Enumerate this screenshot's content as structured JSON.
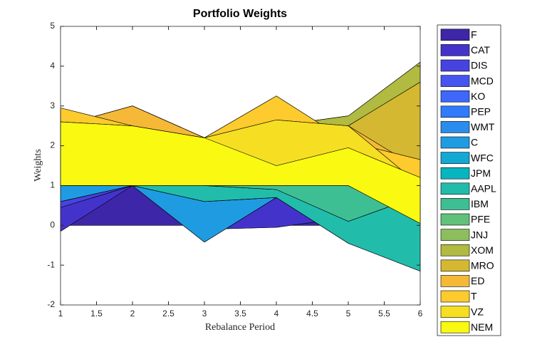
{
  "chart_data": {
    "type": "area",
    "title": "Portfolio Weights",
    "x_label": "Rebalance Period",
    "y_label": "Weights",
    "x": [
      1,
      2,
      3,
      4,
      5,
      6
    ],
    "xlim": [
      1,
      6
    ],
    "xticks": [
      1,
      1.5,
      2,
      2.5,
      3,
      3.5,
      4,
      4.5,
      5,
      5.5,
      6
    ],
    "ylim": [
      -2,
      5
    ],
    "yticks": [
      -2,
      -1,
      0,
      1,
      2,
      3,
      4,
      5
    ],
    "legend": "outside-right",
    "series": [
      {
        "name": "F",
        "color": "#3e26a8",
        "values": [
          -0.15,
          1.0,
          -0.1,
          -0.05,
          0.2,
          0.3
        ]
      },
      {
        "name": "CAT",
        "color": "#4433cb",
        "values": [
          0.6,
          0,
          0,
          0.75,
          0.1,
          0
        ]
      },
      {
        "name": "DIS",
        "color": "#4743e1",
        "values": [
          0.15,
          0,
          0,
          0,
          0,
          0
        ]
      },
      {
        "name": "MCD",
        "color": "#4655f0",
        "values": [
          0,
          0,
          0,
          0,
          0,
          0
        ]
      },
      {
        "name": "KO",
        "color": "#3e67fb",
        "values": [
          0,
          0,
          0,
          0,
          0,
          0
        ]
      },
      {
        "name": "PEP",
        "color": "#2f7bfa",
        "values": [
          0,
          0,
          -0.32,
          0,
          0,
          0
        ]
      },
      {
        "name": "WMT",
        "color": "#2a8ded",
        "values": [
          0,
          0,
          0,
          0,
          0,
          0
        ]
      },
      {
        "name": "C",
        "color": "#1f9ce1",
        "values": [
          0.4,
          0,
          1.02,
          0,
          0,
          0
        ]
      },
      {
        "name": "WFC",
        "color": "#12a9d4",
        "values": [
          0,
          0,
          0,
          0,
          0,
          0
        ]
      },
      {
        "name": "JPM",
        "color": "#06b5c0",
        "values": [
          0,
          0,
          0,
          0,
          -0.75,
          -1.45
        ]
      },
      {
        "name": "AAPL",
        "color": "#22bcab",
        "values": [
          1.5,
          2.0,
          0.4,
          0.2,
          0.55,
          1.9
        ]
      },
      {
        "name": "IBM",
        "color": "#3ebf93",
        "values": [
          0,
          0,
          1.2,
          1.6,
          2.65,
          2.85
        ]
      },
      {
        "name": "PFE",
        "color": "#61c07a",
        "values": [
          0,
          0,
          0,
          0,
          0,
          0
        ]
      },
      {
        "name": "JNJ",
        "color": "#8cbe5e",
        "values": [
          0,
          0,
          0,
          0,
          0,
          0.5
        ]
      },
      {
        "name": "XOM",
        "color": "#b1ba41",
        "values": [
          0,
          0,
          0,
          0,
          -0.25,
          -0.5
        ]
      },
      {
        "name": "MRO",
        "color": "#d4b831",
        "values": [
          0,
          0,
          0,
          0,
          0,
          -2.2
        ]
      },
      {
        "name": "ED",
        "color": "#f5b937",
        "values": [
          0.45,
          -0.5,
          0,
          0.75,
          -0.4,
          0.25
        ]
      },
      {
        "name": "T",
        "color": "#fdcb2d",
        "values": [
          -0.35,
          0,
          0,
          -0.6,
          0.4,
          -0.65
        ]
      },
      {
        "name": "VZ",
        "color": "#f6df23",
        "values": [
          -1.6,
          -1.5,
          -1.2,
          -1.65,
          -1.5,
          -0.95
        ]
      },
      {
        "name": "NEM",
        "color": "#f9f911",
        "values": [
          1.6,
          1.5,
          1.2,
          0.5,
          0.95,
          1.15
        ]
      }
    ]
  }
}
